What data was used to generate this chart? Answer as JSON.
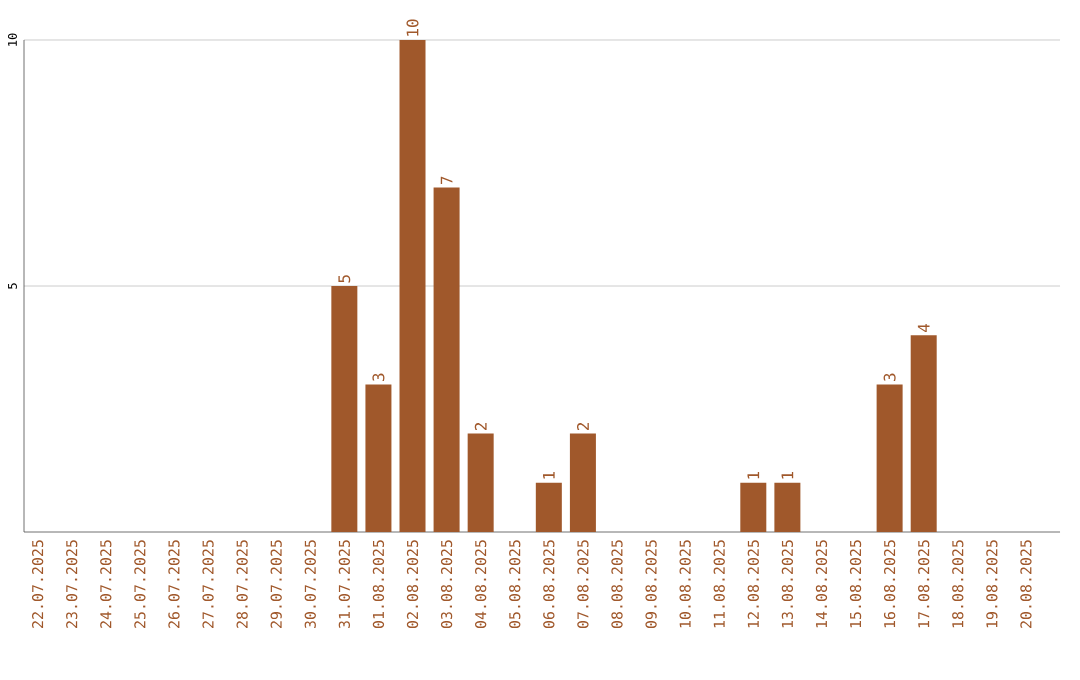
{
  "chart_data": {
    "type": "bar",
    "categories": [
      "22.07.2025",
      "23.07.2025",
      "24.07.2025",
      "25.07.2025",
      "26.07.2025",
      "27.07.2025",
      "28.07.2025",
      "29.07.2025",
      "30.07.2025",
      "31.07.2025",
      "01.08.2025",
      "02.08.2025",
      "03.08.2025",
      "04.08.2025",
      "05.08.2025",
      "06.08.2025",
      "07.08.2025",
      "08.08.2025",
      "09.08.2025",
      "10.08.2025",
      "11.08.2025",
      "12.08.2025",
      "13.08.2025",
      "14.08.2025",
      "15.08.2025",
      "16.08.2025",
      "17.08.2025",
      "18.08.2025",
      "19.08.2025",
      "20.08.2025"
    ],
    "values": [
      0,
      0,
      0,
      0,
      0,
      0,
      0,
      0,
      0,
      5,
      3,
      10,
      7,
      2,
      0,
      1,
      2,
      0,
      0,
      0,
      0,
      1,
      1,
      0,
      0,
      3,
      4,
      0,
      0,
      0
    ],
    "value_labels": [
      null,
      null,
      null,
      null,
      null,
      null,
      null,
      null,
      null,
      "5",
      "3",
      "10",
      "7",
      "2",
      null,
      "1",
      "2",
      null,
      null,
      null,
      null,
      "1",
      "1",
      null,
      null,
      "3",
      "4",
      null,
      null,
      null
    ],
    "color": "#a0582b",
    "ylim": [
      0,
      10
    ],
    "yticks": [
      5,
      10
    ],
    "grid": "y"
  }
}
